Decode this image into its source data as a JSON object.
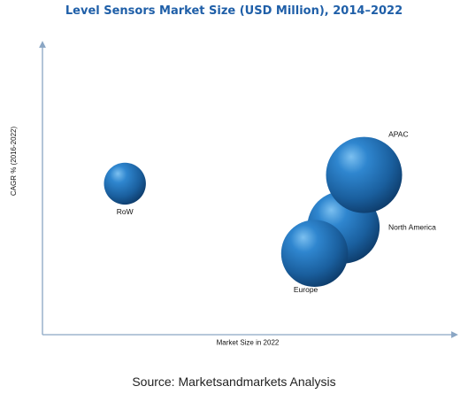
{
  "chart_data": {
    "type": "scatter",
    "title": "Level Sensors Market Size (USD Million), 2014–2022",
    "xlabel": "Market Size in 2022",
    "ylabel": "CAGR % (2016-2022)",
    "grid": false,
    "legend": "none",
    "points": [
      {
        "label": "RoW",
        "x": 0.2,
        "y": 0.52,
        "size": 0.55
      },
      {
        "label": "North America",
        "x": 0.73,
        "y": 0.37,
        "size": 0.95
      },
      {
        "label": "Europe",
        "x": 0.66,
        "y": 0.28,
        "size": 0.88
      },
      {
        "label": "APAC",
        "x": 0.78,
        "y": 0.55,
        "size": 1.0
      }
    ],
    "bubble_color": "#1f67a8"
  },
  "source": "Source: Marketsandmarkets Analysis"
}
